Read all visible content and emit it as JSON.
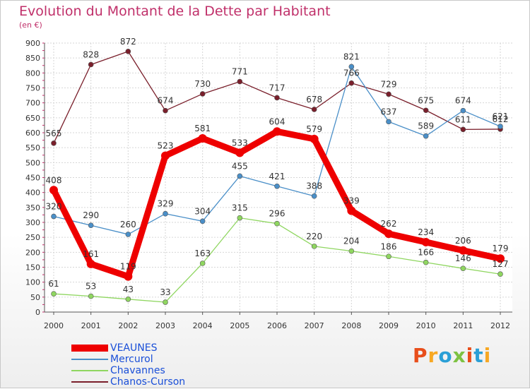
{
  "title": "Evolution du Montant de la Dette par Habitant",
  "unit": "(en €)",
  "logo": {
    "text": "Proxiti",
    "colors": [
      "#e84e1b",
      "#f7a823",
      "#2a9fd6",
      "#7dc242",
      "#e84e1b",
      "#2a9fd6",
      "#f7a823"
    ]
  },
  "chart_data": {
    "type": "line",
    "x": [
      "2000",
      "2001",
      "2002",
      "2003",
      "2004",
      "2005",
      "2006",
      "2007",
      "2008",
      "2009",
      "2010",
      "2011",
      "2012"
    ],
    "ylim": [
      0,
      900
    ],
    "yticks": [
      0,
      50,
      100,
      150,
      200,
      250,
      300,
      350,
      400,
      450,
      500,
      550,
      600,
      650,
      700,
      750,
      800,
      850,
      900
    ],
    "grid": true,
    "legend_position": "bottom-left",
    "series": [
      {
        "name": "Chanos-Curson",
        "color": "#7a1f2b",
        "values": [
          565,
          828,
          872,
          674,
          730,
          771,
          717,
          678,
          766,
          729,
          675,
          611,
          612
        ]
      },
      {
        "name": "Mercurol",
        "color": "#4a8fc8",
        "values": [
          320,
          290,
          260,
          329,
          304,
          455,
          421,
          388,
          821,
          637,
          589,
          674,
          621
        ]
      },
      {
        "name": "Chavannes",
        "color": "#8fd660",
        "values": [
          61,
          53,
          43,
          33,
          163,
          315,
          296,
          220,
          204,
          186,
          166,
          146,
          127
        ]
      },
      {
        "name": "VEAUNES",
        "color": "#ee0000",
        "values": [
          408,
          161,
          119,
          523,
          581,
          533,
          604,
          579,
          339,
          262,
          234,
          206,
          179
        ]
      }
    ],
    "legend_order": [
      "VEAUNES",
      "Mercurol",
      "Chavannes",
      "Chanos-Curson"
    ]
  }
}
